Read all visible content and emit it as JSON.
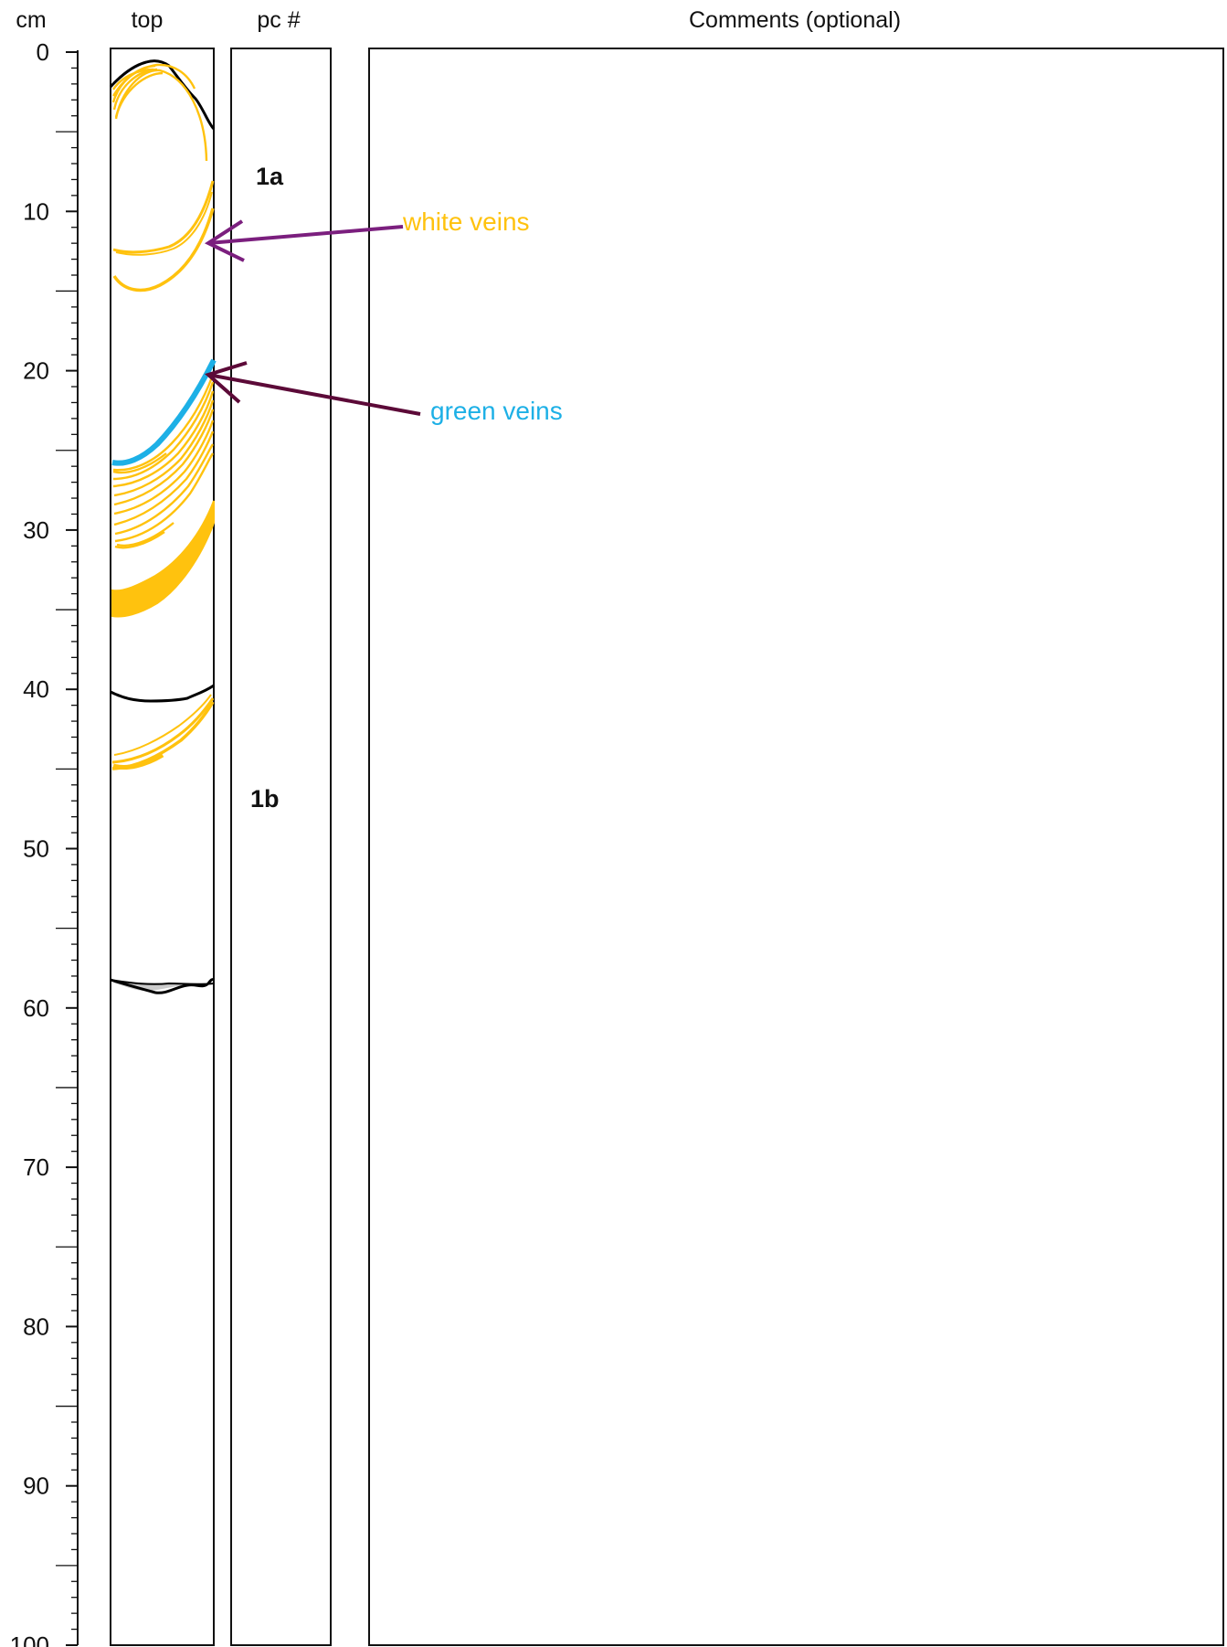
{
  "headers": {
    "depth_unit": "cm",
    "core_column": "top",
    "piece_column": "pc #",
    "comments_column": "Comments (optional)"
  },
  "scale": {
    "min": 0,
    "max": 100,
    "major_step": 10,
    "minor_step": 1,
    "labels": [
      "0",
      "10",
      "20",
      "30",
      "40",
      "50",
      "60",
      "70",
      "80",
      "90",
      "100"
    ]
  },
  "pieces": [
    {
      "label": "1a",
      "depth_cm": 7.6
    },
    {
      "label": "1b",
      "depth_cm": 46.6
    }
  ],
  "annotations": [
    {
      "label": "white veins",
      "color": "#FFC20E",
      "arrow_color": "#7B1F7E",
      "target_depth_cm": 11.9
    },
    {
      "label": "green veins",
      "color": "#1DB0E6",
      "arrow_color": "#5C0A38",
      "target_depth_cm": 20.3
    }
  ],
  "colors": {
    "white_veins": "#FFC20E",
    "green_veins": "#1DB0E6",
    "piece_boundary": "#000000"
  }
}
